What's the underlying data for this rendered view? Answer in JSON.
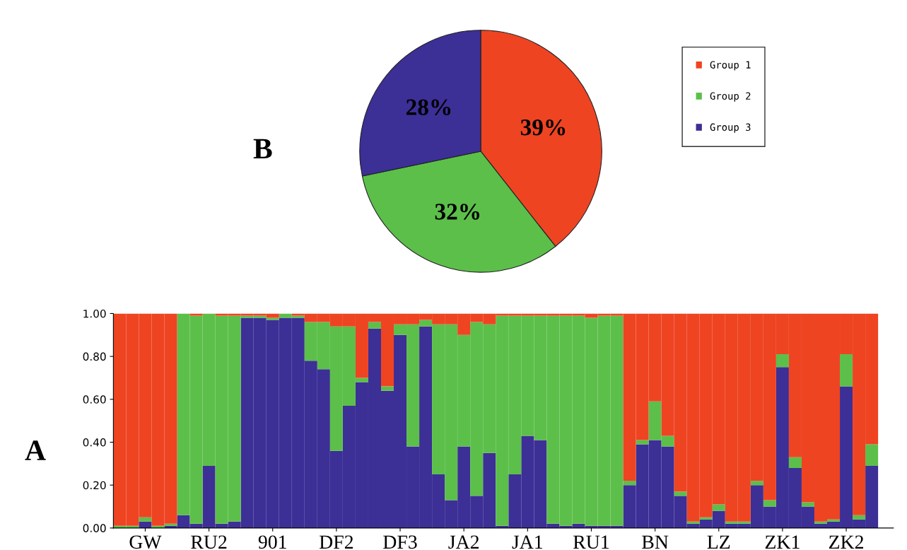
{
  "chart_data": [
    {
      "type": "pie",
      "categories": [
        "Group 1",
        "Group 2",
        "Group 3"
      ],
      "values": [
        39,
        32,
        28
      ],
      "colors": [
        "#ee4422",
        "#5cbf4a",
        "#3c2f96"
      ],
      "value_labels": [
        "39%",
        "32%",
        "28%"
      ],
      "legend": "right",
      "annotations": [
        "B"
      ]
    },
    {
      "type": "bar",
      "stacked": true,
      "categories": [
        null,
        null,
        "GW",
        null,
        null,
        null,
        null,
        "RU2",
        null,
        null,
        null,
        null,
        "901",
        null,
        null,
        null,
        null,
        "DF2",
        null,
        null,
        null,
        null,
        "DF3",
        null,
        null,
        null,
        null,
        "JA2",
        null,
        null,
        null,
        null,
        "JA1",
        null,
        null,
        null,
        null,
        "RU1",
        null,
        null,
        null,
        null,
        "BN",
        null,
        null,
        null,
        null,
        "LZ",
        null,
        null,
        null,
        null,
        "ZK1",
        null,
        null,
        null,
        null,
        "ZK2",
        null,
        null
      ],
      "series": [
        {
          "color": "#3c2f96",
          "values": [
            0,
            0,
            0.03,
            0,
            0.01,
            0.06,
            0.02,
            0.29,
            0.02,
            0.03,
            0.98,
            0.98,
            0.97,
            0.98,
            0.98,
            0.78,
            0.74,
            0.36,
            0.57,
            0.68,
            0.93,
            0.64,
            0.9,
            0.38,
            0.94,
            0.25,
            0.13,
            0.38,
            0.15,
            0.35,
            0.01,
            0.25,
            0.43,
            0.41,
            0.02,
            0.01,
            0.02,
            0.01,
            0.01,
            0.01,
            0.2,
            0.39,
            0.41,
            0.38,
            0.15,
            0.02,
            0.04,
            0.08,
            0.02,
            0.02,
            0.2,
            0.1,
            0.75,
            0.28,
            0.1,
            0.02,
            0.03,
            0.66,
            0.04,
            0.29
          ]
        },
        {
          "color": "#5cbf4a",
          "values": [
            0.01,
            0.01,
            0.02,
            0.01,
            0.01,
            0.94,
            0.97,
            0.71,
            0.97,
            0.96,
            0.01,
            0.01,
            0.01,
            0.02,
            0.01,
            0.18,
            0.22,
            0.58,
            0.37,
            0.02,
            0.03,
            0.02,
            0.05,
            0.57,
            0.03,
            0.7,
            0.82,
            0.52,
            0.81,
            0.6,
            0.98,
            0.74,
            0.56,
            0.58,
            0.97,
            0.98,
            0.97,
            0.97,
            0.98,
            0.98,
            0.02,
            0.02,
            0.18,
            0.05,
            0.02,
            0.01,
            0.01,
            0.03,
            0.01,
            0.01,
            0.02,
            0.03,
            0.06,
            0.05,
            0.02,
            0.01,
            0.01,
            0.15,
            0.02,
            0.1
          ]
        },
        {
          "color": "#ee4422",
          "values": [
            0.99,
            0.99,
            0.95,
            0.99,
            0.98,
            0,
            0.01,
            0,
            0.01,
            0.01,
            0.01,
            0.01,
            0.02,
            0,
            0.01,
            0.04,
            0.04,
            0.06,
            0.06,
            0.3,
            0.04,
            0.34,
            0.05,
            0.05,
            0.03,
            0.05,
            0.05,
            0.1,
            0.04,
            0.05,
            0.01,
            0.01,
            0.01,
            0.01,
            0.01,
            0.01,
            0.01,
            0.02,
            0.01,
            0.01,
            0.78,
            0.59,
            0.41,
            0.57,
            0.83,
            0.97,
            0.95,
            0.89,
            0.97,
            0.97,
            0.78,
            0.87,
            0.19,
            0.67,
            0.88,
            0.97,
            0.96,
            0.19,
            0.94,
            0.61
          ]
        }
      ],
      "ylim": [
        0,
        1
      ],
      "yticks": [
        {
          "value": 0,
          "label": "0.00"
        },
        {
          "value": 0.2,
          "label": "0.20"
        },
        {
          "value": 0.4,
          "label": "0.40"
        },
        {
          "value": 0.6,
          "label": "0.60"
        },
        {
          "value": 0.8,
          "label": "0.80"
        },
        {
          "value": 1,
          "label": "1.00"
        }
      ],
      "annotations": [
        "A"
      ]
    }
  ]
}
